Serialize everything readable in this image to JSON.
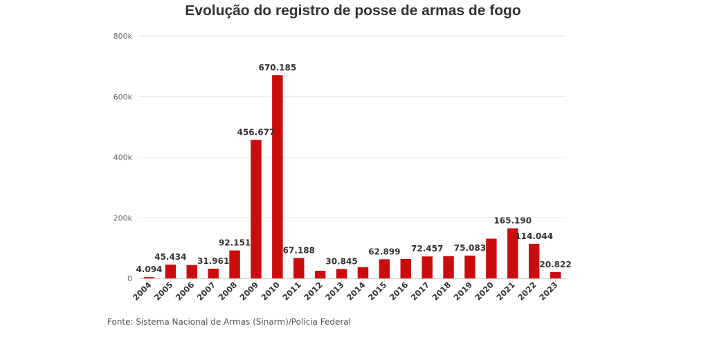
{
  "chart_data": {
    "type": "bar",
    "title": "Evolução do registro de posse de armas de fogo",
    "source": "Fonte: Sistema Nacional de Armas (Sinarm)/Polícia Federal",
    "xlabel": "",
    "ylabel": "",
    "ylim": [
      0,
      800000
    ],
    "yticks": [
      0,
      200000,
      400000,
      600000,
      800000
    ],
    "ytick_labels": [
      "0",
      "200k",
      "400k",
      "600k",
      "800k"
    ],
    "grid": true,
    "bar_color": "#cc0c0c",
    "categories": [
      "2004",
      "2005",
      "2006",
      "2007",
      "2008",
      "2009",
      "2010",
      "2011",
      "2012",
      "2013",
      "2014",
      "2015",
      "2016",
      "2017",
      "2018",
      "2019",
      "2020",
      "2021",
      "2022",
      "2023"
    ],
    "values": [
      4094,
      45434,
      44000,
      31961,
      92151,
      456677,
      670185,
      67188,
      25000,
      30845,
      37000,
      62899,
      64000,
      72457,
      73000,
      75083,
      131000,
      165190,
      114044,
      20822
    ],
    "data_labels": [
      "4.094",
      "45.434",
      "",
      "31.961",
      "92.151",
      "456.677",
      "670.185",
      "67.188",
      "",
      "30.845",
      "",
      "62.899",
      "",
      "72.457",
      "",
      "75.083",
      "",
      "165.190",
      "114.044",
      "20.822"
    ]
  }
}
